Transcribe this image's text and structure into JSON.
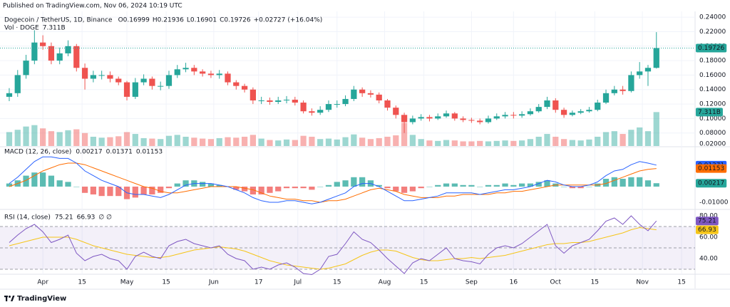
{
  "published": "Published on TradingView.com, Nov 06, 2024 10:19 UTC",
  "brand": "TradingView",
  "chart_data": [
    {
      "type": "candlestick",
      "title": "Dogecoin / TetherUS, 1D, Binance",
      "ohlc_letters": [
        "O",
        "H",
        "L",
        "C"
      ],
      "change": {
        "value": 0.02727,
        "label": "+0.02727"
      },
      "change_pct": {
        "value": 16.04,
        "label": "(+16.04%)"
      },
      "up_color": "#26a69a",
      "down_color": "#ef5350",
      "x": [
        2,
        5,
        8,
        11,
        14,
        17,
        20,
        23,
        26,
        29,
        32,
        35,
        38,
        41,
        44,
        47,
        50,
        53,
        56,
        59,
        62,
        65,
        68,
        71,
        74,
        77,
        80,
        83,
        86,
        89,
        92,
        95,
        98,
        101,
        104,
        107,
        110,
        113,
        116,
        119,
        122,
        125,
        128,
        131,
        134,
        137,
        140,
        143,
        146,
        149,
        152,
        155,
        158,
        161,
        164,
        167,
        170,
        173,
        176,
        179,
        182,
        185,
        188,
        191,
        194,
        197,
        200,
        203,
        206,
        209,
        212,
        215,
        218,
        221,
        224,
        227,
        230,
        233
      ],
      "xlim": [
        -1.3,
        246.8
      ],
      "xticks": [
        {
          "value": 14,
          "label": "Apr"
        },
        {
          "value": 28,
          "label": "15"
        },
        {
          "value": 44,
          "label": "May"
        },
        {
          "value": 58,
          "label": "15"
        },
        {
          "value": 75,
          "label": "Jun"
        },
        {
          "value": 91,
          "label": "17"
        },
        {
          "value": 105,
          "label": "Jul"
        },
        {
          "value": 119,
          "label": "15"
        },
        {
          "value": 136,
          "label": "Aug"
        },
        {
          "value": 150,
          "label": "15"
        },
        {
          "value": 167,
          "label": "Sep"
        },
        {
          "value": 182,
          "label": "16"
        },
        {
          "value": 197,
          "label": "Oct"
        },
        {
          "value": 211,
          "label": "15"
        },
        {
          "value": 228,
          "label": "Nov"
        },
        {
          "value": 242,
          "label": "15"
        }
      ],
      "open": [
        0.13,
        0.135,
        0.16,
        0.18,
        0.205,
        0.2,
        0.18,
        0.19,
        0.2,
        0.17,
        0.155,
        0.16,
        0.16,
        0.155,
        0.15,
        0.13,
        0.15,
        0.155,
        0.145,
        0.145,
        0.16,
        0.168,
        0.17,
        0.165,
        0.162,
        0.16,
        0.162,
        0.15,
        0.145,
        0.14,
        0.125,
        0.125,
        0.123,
        0.125,
        0.126,
        0.122,
        0.11,
        0.108,
        0.112,
        0.12,
        0.12,
        0.127,
        0.14,
        0.135,
        0.133,
        0.125,
        0.115,
        0.105,
        0.095,
        0.1,
        0.102,
        0.1,
        0.103,
        0.107,
        0.1,
        0.098,
        0.097,
        0.095,
        0.1,
        0.103,
        0.105,
        0.104,
        0.106,
        0.11,
        0.116,
        0.125,
        0.112,
        0.105,
        0.108,
        0.11,
        0.112,
        0.122,
        0.135,
        0.14,
        0.138,
        0.16,
        0.165,
        0.16999
      ],
      "high": [
        0.142,
        0.167,
        0.188,
        0.222,
        0.215,
        0.205,
        0.198,
        0.208,
        0.203,
        0.176,
        0.166,
        0.166,
        0.165,
        0.158,
        0.152,
        0.156,
        0.161,
        0.158,
        0.151,
        0.166,
        0.174,
        0.177,
        0.174,
        0.168,
        0.166,
        0.167,
        0.165,
        0.153,
        0.148,
        0.143,
        0.13,
        0.129,
        0.13,
        0.131,
        0.13,
        0.125,
        0.114,
        0.117,
        0.125,
        0.125,
        0.132,
        0.145,
        0.143,
        0.139,
        0.136,
        0.127,
        0.118,
        0.108,
        0.104,
        0.106,
        0.105,
        0.107,
        0.111,
        0.109,
        0.103,
        0.101,
        0.1,
        0.104,
        0.107,
        0.109,
        0.109,
        0.11,
        0.114,
        0.12,
        0.13,
        0.128,
        0.115,
        0.111,
        0.113,
        0.116,
        0.126,
        0.14,
        0.145,
        0.145,
        0.165,
        0.178,
        0.174,
        0.21936
      ],
      "low": [
        0.124,
        0.13,
        0.155,
        0.175,
        0.195,
        0.175,
        0.175,
        0.186,
        0.165,
        0.14,
        0.15,
        0.154,
        0.15,
        0.146,
        0.125,
        0.127,
        0.146,
        0.14,
        0.139,
        0.141,
        0.156,
        0.164,
        0.16,
        0.158,
        0.156,
        0.155,
        0.146,
        0.14,
        0.136,
        0.12,
        0.12,
        0.119,
        0.12,
        0.121,
        0.118,
        0.107,
        0.104,
        0.105,
        0.109,
        0.115,
        0.117,
        0.124,
        0.13,
        0.129,
        0.121,
        0.111,
        0.1,
        0.08,
        0.092,
        0.097,
        0.096,
        0.098,
        0.101,
        0.097,
        0.095,
        0.094,
        0.092,
        0.093,
        0.098,
        0.1,
        0.1,
        0.101,
        0.104,
        0.108,
        0.113,
        0.108,
        0.101,
        0.103,
        0.106,
        0.108,
        0.11,
        0.12,
        0.132,
        0.133,
        0.136,
        0.155,
        0.145,
        0.16901
      ],
      "close": [
        0.135,
        0.16,
        0.18,
        0.205,
        0.2,
        0.18,
        0.19,
        0.2,
        0.17,
        0.155,
        0.16,
        0.16,
        0.155,
        0.15,
        0.13,
        0.15,
        0.155,
        0.145,
        0.145,
        0.16,
        0.168,
        0.17,
        0.165,
        0.162,
        0.16,
        0.162,
        0.15,
        0.145,
        0.14,
        0.125,
        0.125,
        0.123,
        0.125,
        0.126,
        0.122,
        0.11,
        0.108,
        0.112,
        0.12,
        0.12,
        0.127,
        0.14,
        0.135,
        0.133,
        0.125,
        0.115,
        0.105,
        0.095,
        0.1,
        0.102,
        0.1,
        0.103,
        0.107,
        0.1,
        0.098,
        0.097,
        0.095,
        0.1,
        0.103,
        0.105,
        0.104,
        0.106,
        0.11,
        0.116,
        0.125,
        0.112,
        0.105,
        0.108,
        0.11,
        0.112,
        0.122,
        0.135,
        0.14,
        0.138,
        0.16,
        0.165,
        0.17,
        0.19726
      ],
      "ylim": [
        0.062,
        0.248
      ],
      "yticks": [
        {
          "value": 0.24,
          "label": "0.24000"
        },
        {
          "value": 0.22,
          "label": "0.22000"
        },
        {
          "value": 0.2,
          "label": "0.20000"
        },
        {
          "value": 0.18,
          "label": "0.18000"
        },
        {
          "value": 0.16,
          "label": "0.16000"
        },
        {
          "value": 0.14,
          "label": "0.14000"
        },
        {
          "value": 0.12,
          "label": "0.12000"
        },
        {
          "value": 0.1,
          "label": "0.10000"
        },
        {
          "value": 0.08,
          "label": "0.08000"
        }
      ],
      "scale_bottom_label": "0.02000",
      "grid": true,
      "volume": {
        "name": "Vol · DOGE",
        "ylim": [
          0,
          29
        ],
        "last_label": "7.311B",
        "values": [
          3.0,
          3.5,
          4.2,
          4.5,
          3.8,
          3.2,
          3.0,
          3.4,
          3.6,
          2.8,
          2.0,
          1.8,
          1.9,
          2.1,
          3.0,
          2.6,
          1.7,
          1.6,
          1.5,
          2.2,
          2.4,
          2.0,
          1.8,
          1.6,
          1.5,
          1.7,
          1.9,
          1.8,
          2.0,
          2.4,
          1.6,
          1.3,
          1.2,
          1.4,
          1.3,
          2.2,
          2.0,
          1.5,
          1.6,
          1.4,
          1.9,
          2.5,
          1.8,
          1.5,
          1.7,
          2.0,
          2.3,
          5.0,
          2.4,
          1.5,
          1.2,
          1.1,
          1.3,
          1.2,
          1.0,
          1.0,
          1.1,
          1.0,
          1.1,
          1.2,
          1.1,
          1.2,
          1.5,
          2.0,
          2.6,
          2.0,
          1.5,
          1.3,
          1.2,
          1.4,
          2.0,
          3.0,
          3.2,
          2.6,
          3.5,
          4.0,
          3.2,
          7.311
        ]
      }
    },
    {
      "type": "macd",
      "title": "MACD (12, 26, close)",
      "ylim": [
        -0.0141,
        0.025
      ],
      "yticks": [
        {
          "value": -0.01,
          "label": "-0.01000"
        }
      ],
      "histogram": {
        "up_color": "#26a69a",
        "down_color": "#ef5350",
        "values": [
          0.002,
          0.004,
          0.007,
          0.009,
          0.009,
          0.007,
          0.004,
          0.003,
          0.0,
          -0.004,
          -0.005,
          -0.006,
          -0.006,
          -0.006,
          -0.008,
          -0.007,
          -0.005,
          -0.005,
          -0.004,
          -0.001,
          0.002,
          0.004,
          0.004,
          0.003,
          0.002,
          0.001,
          0.0,
          -0.002,
          -0.003,
          -0.005,
          -0.005,
          -0.004,
          -0.003,
          -0.001,
          -0.001,
          -0.001,
          -0.002,
          0.0,
          0.001,
          0.003,
          0.004,
          0.006,
          0.006,
          0.004,
          0.001,
          -0.001,
          -0.003,
          -0.004,
          -0.003,
          -0.001,
          0.0,
          0.001,
          0.002,
          0.002,
          0.001,
          0.001,
          0.0,
          0.001,
          0.001,
          0.002,
          0.001,
          0.002,
          0.002,
          0.003,
          0.004,
          0.002,
          0.0,
          -0.001,
          -0.001,
          0.0,
          0.002,
          0.005,
          0.006,
          0.005,
          0.006,
          0.006,
          0.004,
          0.00217
        ]
      },
      "macd": {
        "color": "#2962ff",
        "values": [
          0.002,
          0.006,
          0.011,
          0.016,
          0.019,
          0.019,
          0.018,
          0.018,
          0.015,
          0.01,
          0.007,
          0.004,
          0.002,
          0.0,
          -0.004,
          -0.005,
          -0.005,
          -0.006,
          -0.007,
          -0.005,
          -0.002,
          0.001,
          0.002,
          0.002,
          0.002,
          0.001,
          0.0,
          -0.002,
          -0.004,
          -0.007,
          -0.009,
          -0.01,
          -0.01,
          -0.009,
          -0.009,
          -0.01,
          -0.011,
          -0.01,
          -0.008,
          -0.006,
          -0.004,
          0.0,
          0.002,
          0.002,
          0.0,
          -0.003,
          -0.006,
          -0.009,
          -0.009,
          -0.008,
          -0.007,
          -0.006,
          -0.004,
          -0.004,
          -0.004,
          -0.004,
          -0.005,
          -0.004,
          -0.003,
          -0.002,
          -0.002,
          -0.001,
          0.0,
          0.002,
          0.004,
          0.003,
          0.001,
          0.0,
          0.0,
          0.001,
          0.003,
          0.007,
          0.01,
          0.011,
          0.014,
          0.016,
          0.015,
          0.01371
        ]
      },
      "signal": {
        "color": "#ff6d00",
        "values": [
          0.0,
          0.002,
          0.004,
          0.007,
          0.01,
          0.012,
          0.014,
          0.015,
          0.015,
          0.014,
          0.012,
          0.01,
          0.008,
          0.006,
          0.004,
          0.002,
          0.0,
          -0.001,
          -0.003,
          -0.004,
          -0.004,
          -0.003,
          -0.002,
          -0.001,
          0.0,
          0.0,
          0.0,
          0.0,
          -0.001,
          -0.002,
          -0.004,
          -0.006,
          -0.007,
          -0.008,
          -0.008,
          -0.009,
          -0.009,
          -0.01,
          -0.009,
          -0.009,
          -0.008,
          -0.006,
          -0.004,
          -0.002,
          -0.001,
          -0.002,
          -0.003,
          -0.005,
          -0.006,
          -0.007,
          -0.007,
          -0.007,
          -0.006,
          -0.006,
          -0.005,
          -0.005,
          -0.005,
          -0.005,
          -0.004,
          -0.004,
          -0.003,
          -0.003,
          -0.002,
          -0.001,
          0.0,
          0.001,
          0.001,
          0.001,
          0.001,
          0.001,
          0.001,
          0.002,
          0.004,
          0.006,
          0.008,
          0.01,
          0.011,
          0.01153
        ]
      }
    },
    {
      "type": "rsi",
      "title": "RSI (14, close)",
      "extra": "∅ ∅",
      "ylim": [
        26,
        84.7
      ],
      "yticks": [
        {
          "value": 80,
          "label": "80.00"
        },
        {
          "value": 60,
          "label": "60.00"
        },
        {
          "value": 40,
          "label": "40.00"
        }
      ],
      "bands": [
        70,
        50,
        30
      ],
      "rsi": {
        "color": "#7e57c2",
        "values": [
          55,
          62,
          68,
          72,
          65,
          55,
          58,
          62,
          45,
          38,
          42,
          44,
          40,
          38,
          30,
          42,
          46,
          42,
          40,
          52,
          56,
          58,
          54,
          52,
          50,
          52,
          44,
          40,
          38,
          30,
          32,
          30,
          34,
          36,
          32,
          26,
          25,
          30,
          42,
          44,
          54,
          65,
          58,
          55,
          48,
          40,
          33,
          26,
          36,
          40,
          38,
          44,
          50,
          40,
          38,
          37,
          35,
          44,
          50,
          52,
          50,
          54,
          60,
          66,
          72,
          52,
          45,
          52,
          55,
          58,
          66,
          75,
          78,
          72,
          80,
          72,
          66,
          75.21
        ]
      },
      "ma": {
        "color": "#f5c518",
        "values": [
          52,
          54,
          56,
          58,
          60,
          60,
          60,
          60,
          58,
          55,
          52,
          50,
          48,
          46,
          44,
          43,
          42,
          41,
          41,
          42,
          44,
          46,
          48,
          49,
          50,
          51,
          50,
          49,
          47,
          44,
          41,
          38,
          36,
          34,
          33,
          32,
          31,
          30,
          31,
          33,
          35,
          39,
          43,
          46,
          48,
          48,
          47,
          44,
          41,
          39,
          38,
          38,
          39,
          40,
          40,
          41,
          40,
          41,
          42,
          43,
          45,
          47,
          49,
          51,
          53,
          54,
          54,
          55,
          55,
          56,
          58,
          60,
          62,
          64,
          67,
          69,
          68,
          66.93
        ]
      }
    }
  ]
}
